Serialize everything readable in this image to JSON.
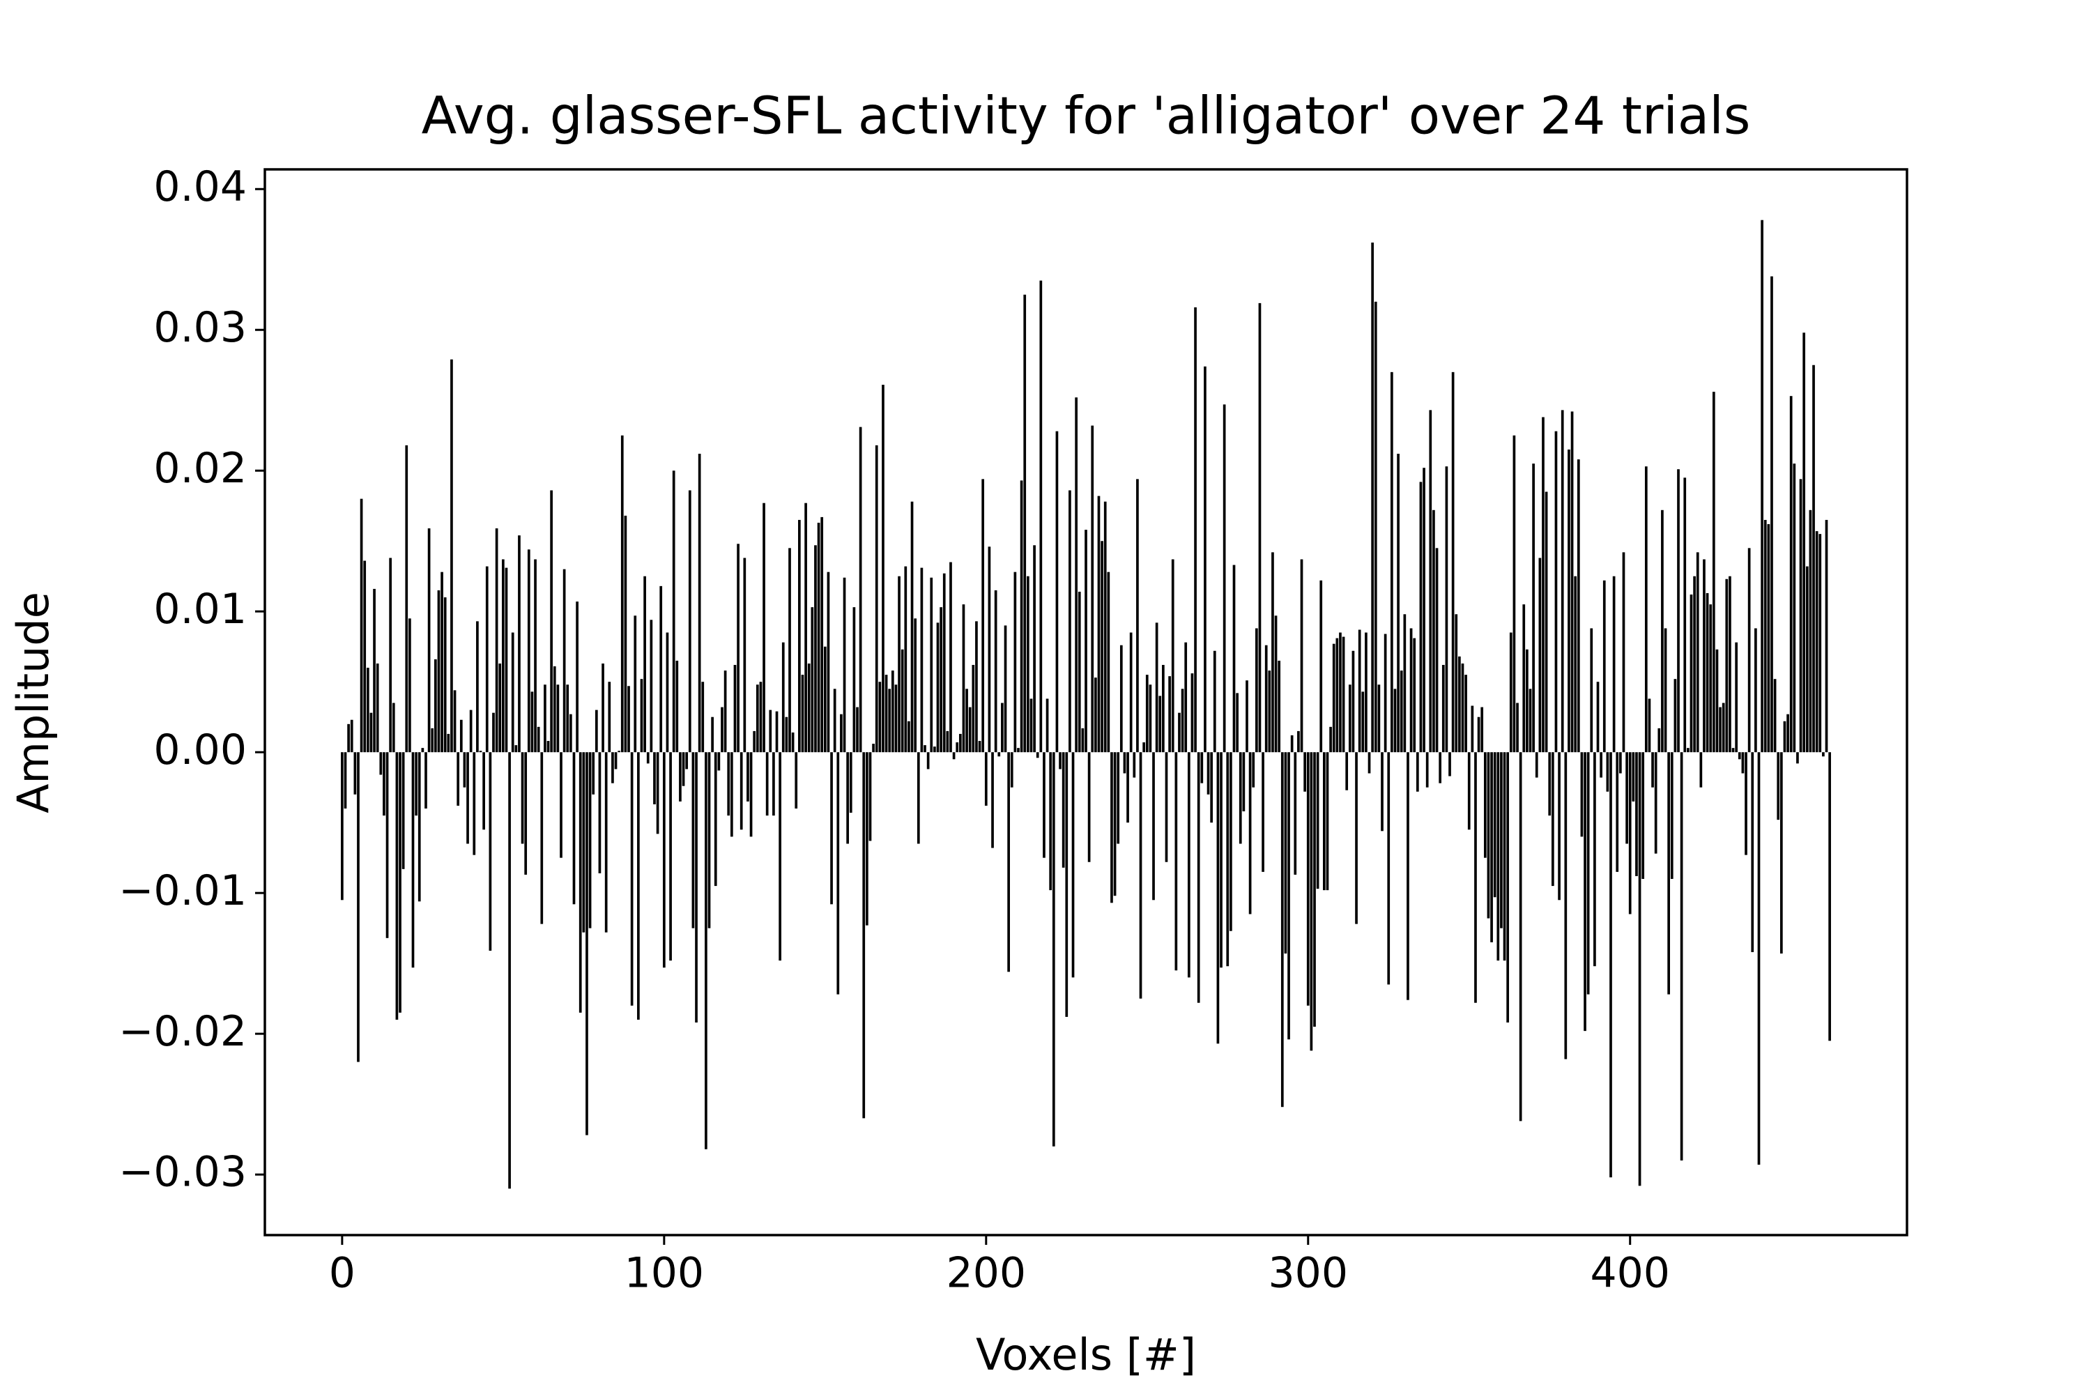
{
  "chart_data": {
    "type": "bar",
    "title": "Avg. glasser-SFL activity for 'alligator' over 24 trials",
    "xlabel": "Voxels [#]",
    "ylabel": "Amplitude",
    "color": "#000000",
    "xlim": [
      -24,
      486
    ],
    "xticks": [
      0,
      100,
      200,
      300,
      400
    ],
    "ylim": [
      -0.0343,
      0.0414
    ],
    "yticks": [
      {
        "value": -0.03,
        "label": "−0.03"
      },
      {
        "value": -0.02,
        "label": "−0.02"
      },
      {
        "value": -0.01,
        "label": "−0.01"
      },
      {
        "value": 0,
        "label": "0.00"
      },
      0.01,
      0.02,
      0.03,
      0.04
    ],
    "x": [
      0,
      1,
      2,
      3,
      4,
      5,
      6,
      7,
      8,
      9,
      10,
      11,
      12,
      13,
      14,
      15,
      16,
      17,
      18,
      19,
      20,
      21,
      22,
      23,
      24,
      25,
      26,
      27,
      28,
      29,
      30,
      31,
      32,
      33,
      34,
      35,
      36,
      37,
      38,
      39,
      40,
      41,
      42,
      43,
      44,
      45,
      46,
      47,
      48,
      49,
      50,
      51,
      52,
      53,
      54,
      55,
      56,
      57,
      58,
      59,
      60,
      61,
      62,
      63,
      64,
      65,
      66,
      67,
      68,
      69,
      70,
      71,
      72,
      73,
      74,
      75,
      76,
      77,
      78,
      79,
      80,
      81,
      82,
      83,
      84,
      85,
      86,
      87,
      88,
      89,
      90,
      91,
      92,
      93,
      94,
      95,
      96,
      97,
      98,
      99,
      100,
      101,
      102,
      103,
      104,
      105,
      106,
      107,
      108,
      109,
      110,
      111,
      112,
      113,
      114,
      115,
      116,
      117,
      118,
      119,
      120,
      121,
      122,
      123,
      124,
      125,
      126,
      127,
      128,
      129,
      130,
      131,
      132,
      133,
      134,
      135,
      136,
      137,
      138,
      139,
      140,
      141,
      142,
      143,
      144,
      145,
      146,
      147,
      148,
      149,
      150,
      151,
      152,
      153,
      154,
      155,
      156,
      157,
      158,
      159,
      160,
      161,
      162,
      163,
      164,
      165,
      166,
      167,
      168,
      169,
      170,
      171,
      172,
      173,
      174,
      175,
      176,
      177,
      178,
      179,
      180,
      181,
      182,
      183,
      184,
      185,
      186,
      187,
      188,
      189,
      190,
      191,
      192,
      193,
      194,
      195,
      196,
      197,
      198,
      199,
      200,
      201,
      202,
      203,
      204,
      205,
      206,
      207,
      208,
      209,
      210,
      211,
      212,
      213,
      214,
      215,
      216,
      217,
      218,
      219,
      220,
      221,
      222,
      223,
      224,
      225,
      226,
      227,
      228,
      229,
      230,
      231,
      232,
      233,
      234,
      235,
      236,
      237,
      238,
      239,
      240,
      241,
      242,
      243,
      244,
      245,
      246,
      247,
      248,
      249,
      250,
      251,
      252,
      253,
      254,
      255,
      256,
      257,
      258,
      259,
      260,
      261,
      262,
      263,
      264,
      265,
      266,
      267,
      268,
      269,
      270,
      271,
      272,
      273,
      274,
      275,
      276,
      277,
      278,
      279,
      280,
      281,
      282,
      283,
      284,
      285,
      286,
      287,
      288,
      289,
      290,
      291,
      292,
      293,
      294,
      295,
      296,
      297,
      298,
      299,
      300,
      301,
      302,
      303,
      304,
      305,
      306,
      307,
      308,
      309,
      310,
      311,
      312,
      313,
      314,
      315,
      316,
      317,
      318,
      319,
      320,
      321,
      322,
      323,
      324,
      325,
      326,
      327,
      328,
      329,
      330,
      331,
      332,
      333,
      334,
      335,
      336,
      337,
      338,
      339,
      340,
      341,
      342,
      343,
      344,
      345,
      346,
      347,
      348,
      349,
      350,
      351,
      352,
      353,
      354,
      355,
      356,
      357,
      358,
      359,
      360,
      361,
      362,
      363,
      364,
      365,
      366,
      367,
      368,
      369,
      370,
      371,
      372,
      373,
      374,
      375,
      376,
      377,
      378,
      379,
      380,
      381,
      382,
      383,
      384,
      385,
      386,
      387,
      388,
      389,
      390,
      391,
      392,
      393,
      394,
      395,
      396,
      397,
      398,
      399,
      400,
      401,
      402,
      403,
      404,
      405,
      406,
      407,
      408,
      409,
      410,
      411,
      412,
      413,
      414,
      415,
      416,
      417,
      418,
      419,
      420,
      421,
      422,
      423,
      424,
      425,
      426,
      427,
      428,
      429,
      430,
      431,
      432,
      433,
      434,
      435,
      436,
      437,
      438,
      439,
      440,
      441,
      442,
      443,
      444,
      445,
      446,
      447,
      448,
      449,
      450,
      451,
      452,
      453,
      454,
      455,
      456,
      457,
      458,
      459,
      460,
      461,
      462
    ],
    "values": [
      -0.0105,
      -0.004,
      0.002,
      0.0023,
      -0.003,
      -0.022,
      0.018,
      0.0136,
      0.006,
      0.0028,
      0.0116,
      0.0063,
      -0.0016,
      -0.0045,
      -0.0132,
      0.0138,
      0.0035,
      -0.019,
      -0.0185,
      -0.0083,
      0.0218,
      0.0095,
      -0.0153,
      -0.0045,
      -0.0106,
      0.0003,
      -0.004,
      0.0159,
      0.0017,
      0.0066,
      0.0115,
      0.0128,
      0.011,
      0.0013,
      0.0279,
      0.0044,
      -0.0038,
      0.0023,
      -0.0025,
      -0.0065,
      0.003,
      -0.0073,
      0.0093,
      0.0001,
      -0.0055,
      0.0132,
      -0.0141,
      0.0028,
      0.0159,
      0.0063,
      0.0137,
      0.0131,
      -0.031,
      0.0085,
      0.0005,
      0.0154,
      -0.0065,
      -0.0087,
      0.0144,
      0.0043,
      0.0137,
      0.0018,
      -0.0122,
      0.0048,
      0.0008,
      0.0186,
      0.0061,
      0.0048,
      -0.0075,
      0.013,
      0.0048,
      0.0027,
      -0.0108,
      0.0107,
      -0.0185,
      -0.0128,
      -0.0272,
      -0.0125,
      -0.003,
      0.003,
      -0.0086,
      0.0063,
      -0.0128,
      0.005,
      -0.0022,
      -0.0012,
      0.0001,
      0.0225,
      0.0168,
      0.0047,
      -0.018,
      0.0097,
      -0.019,
      0.0052,
      0.0125,
      -0.0008,
      0.0094,
      -0.0037,
      -0.0058,
      0.0118,
      -0.0153,
      0.0085,
      -0.0148,
      0.02,
      0.0065,
      -0.0035,
      -0.0024,
      -0.0012,
      0.0186,
      -0.0125,
      -0.0192,
      0.0212,
      0.005,
      -0.0282,
      -0.0125,
      0.0025,
      -0.0095,
      -0.0013,
      0.0032,
      0.0058,
      -0.0045,
      -0.006,
      0.0062,
      0.0148,
      -0.0055,
      0.0138,
      -0.0035,
      -0.006,
      0.0015,
      0.0048,
      0.005,
      0.0177,
      -0.0045,
      0.003,
      -0.0045,
      0.0029,
      -0.0148,
      0.0078,
      0.0025,
      0.0145,
      0.0014,
      -0.004,
      0.0165,
      0.0055,
      0.0177,
      0.0063,
      0.0103,
      0.0147,
      0.0163,
      0.0167,
      0.0075,
      0.0128,
      -0.0108,
      0.0045,
      -0.0172,
      0.0027,
      0.0124,
      -0.0065,
      -0.0043,
      0.0103,
      0.0032,
      0.0231,
      -0.026,
      -0.0123,
      -0.0063,
      0.0006,
      0.0218,
      0.005,
      0.0261,
      0.0055,
      0.0045,
      0.0058,
      0.0048,
      0.0125,
      0.0073,
      0.0132,
      0.0022,
      0.0178,
      0.0095,
      -0.0065,
      0.0131,
      0.0005,
      -0.0012,
      0.0124,
      0.0004,
      0.0092,
      0.0103,
      0.0127,
      0.0015,
      0.0135,
      -0.0005,
      0.0007,
      0.0013,
      0.0105,
      0.0045,
      0.0032,
      0.0062,
      0.0093,
      0.0008,
      0.0194,
      -0.0038,
      0.0146,
      -0.0068,
      0.0115,
      -0.0003,
      0.0035,
      0.009,
      -0.0156,
      -0.0025,
      0.0128,
      0.0003,
      0.0193,
      0.0325,
      0.0125,
      0.0038,
      0.0147,
      -0.0004,
      0.0335,
      -0.0075,
      0.0038,
      -0.0098,
      -0.028,
      0.0228,
      -0.0012,
      -0.0082,
      -0.0188,
      0.0186,
      -0.016,
      0.0252,
      0.0114,
      0.0017,
      0.0158,
      -0.0078,
      0.0232,
      0.0053,
      0.0182,
      0.015,
      0.0178,
      0.0128,
      -0.0107,
      -0.0102,
      -0.0065,
      0.0076,
      -0.0015,
      -0.005,
      0.0085,
      -0.0018,
      0.0194,
      -0.0175,
      0.0007,
      0.0055,
      0.0048,
      -0.0105,
      0.0092,
      0.004,
      0.0062,
      -0.0078,
      0.0054,
      0.0137,
      -0.0155,
      0.0028,
      0.0045,
      0.0078,
      -0.016,
      0.0056,
      0.0316,
      -0.0178,
      -0.0022,
      0.0274,
      -0.003,
      -0.005,
      0.0072,
      -0.0207,
      -0.0153,
      0.0247,
      -0.0152,
      -0.0127,
      0.0133,
      0.0042,
      -0.0065,
      -0.0042,
      0.0051,
      -0.0115,
      -0.0025,
      0.0088,
      0.0319,
      -0.0085,
      0.0076,
      0.0058,
      0.0142,
      0.0097,
      0.0065,
      -0.0252,
      -0.0143,
      -0.0204,
      0.0012,
      -0.0087,
      0.0015,
      0.0137,
      -0.0028,
      -0.018,
      -0.0212,
      -0.0195,
      -0.0097,
      0.0122,
      -0.0098,
      -0.0098,
      0.0018,
      0.0077,
      0.0081,
      0.0085,
      0.0082,
      -0.0027,
      0.0048,
      0.0072,
      -0.0122,
      0.0087,
      0.0043,
      0.0085,
      -0.0015,
      0.0362,
      0.032,
      0.0048,
      -0.0056,
      0.0084,
      -0.0165,
      0.027,
      0.0045,
      0.0212,
      0.0058,
      0.0098,
      -0.0176,
      0.0088,
      0.0081,
      -0.0028,
      0.0192,
      0.0202,
      -0.0025,
      0.0243,
      0.0172,
      0.0145,
      -0.0022,
      0.0062,
      0.0203,
      -0.0017,
      0.027,
      0.0098,
      0.0068,
      0.0063,
      0.0055,
      -0.0055,
      0.0033,
      -0.0178,
      0.0025,
      0.0032,
      -0.0075,
      -0.0118,
      -0.0135,
      -0.0103,
      -0.0148,
      -0.0125,
      -0.0148,
      -0.0192,
      0.0085,
      0.0225,
      0.0035,
      -0.0262,
      0.0105,
      0.0073,
      0.0045,
      0.0205,
      -0.0018,
      0.0138,
      0.0238,
      0.0185,
      -0.0045,
      -0.0095,
      0.0228,
      -0.0105,
      0.0243,
      -0.0218,
      0.0215,
      0.0242,
      0.0125,
      0.0208,
      -0.006,
      -0.0198,
      -0.0172,
      0.0088,
      -0.0152,
      0.005,
      -0.0018,
      0.0122,
      -0.0028,
      -0.0302,
      0.0125,
      -0.0085,
      -0.0015,
      0.0142,
      -0.0065,
      -0.0115,
      -0.0035,
      -0.0088,
      -0.0308,
      -0.009,
      0.0203,
      0.0038,
      -0.0025,
      -0.0072,
      0.0017,
      0.0172,
      0.0088,
      -0.0172,
      -0.009,
      0.0052,
      0.0201,
      -0.029,
      0.0195,
      0.0003,
      0.0112,
      0.0125,
      0.0142,
      -0.0025,
      0.0137,
      0.0113,
      0.0105,
      0.0256,
      0.0073,
      0.0032,
      0.0035,
      0.0123,
      0.0125,
      0.0003,
      0.0078,
      -0.0005,
      -0.0015,
      -0.0073,
      0.0145,
      -0.0142,
      0.0088,
      -0.0293,
      0.0378,
      0.0165,
      0.0162,
      0.0338,
      0.0052,
      -0.0048,
      -0.0143,
      0.0022,
      0.0027,
      0.0253,
      0.0205,
      -0.0008,
      0.0194,
      0.0298,
      0.0132,
      0.0172,
      0.0275,
      0.0157,
      0.0155,
      -0.0003,
      0.0165,
      -0.0205
    ]
  }
}
